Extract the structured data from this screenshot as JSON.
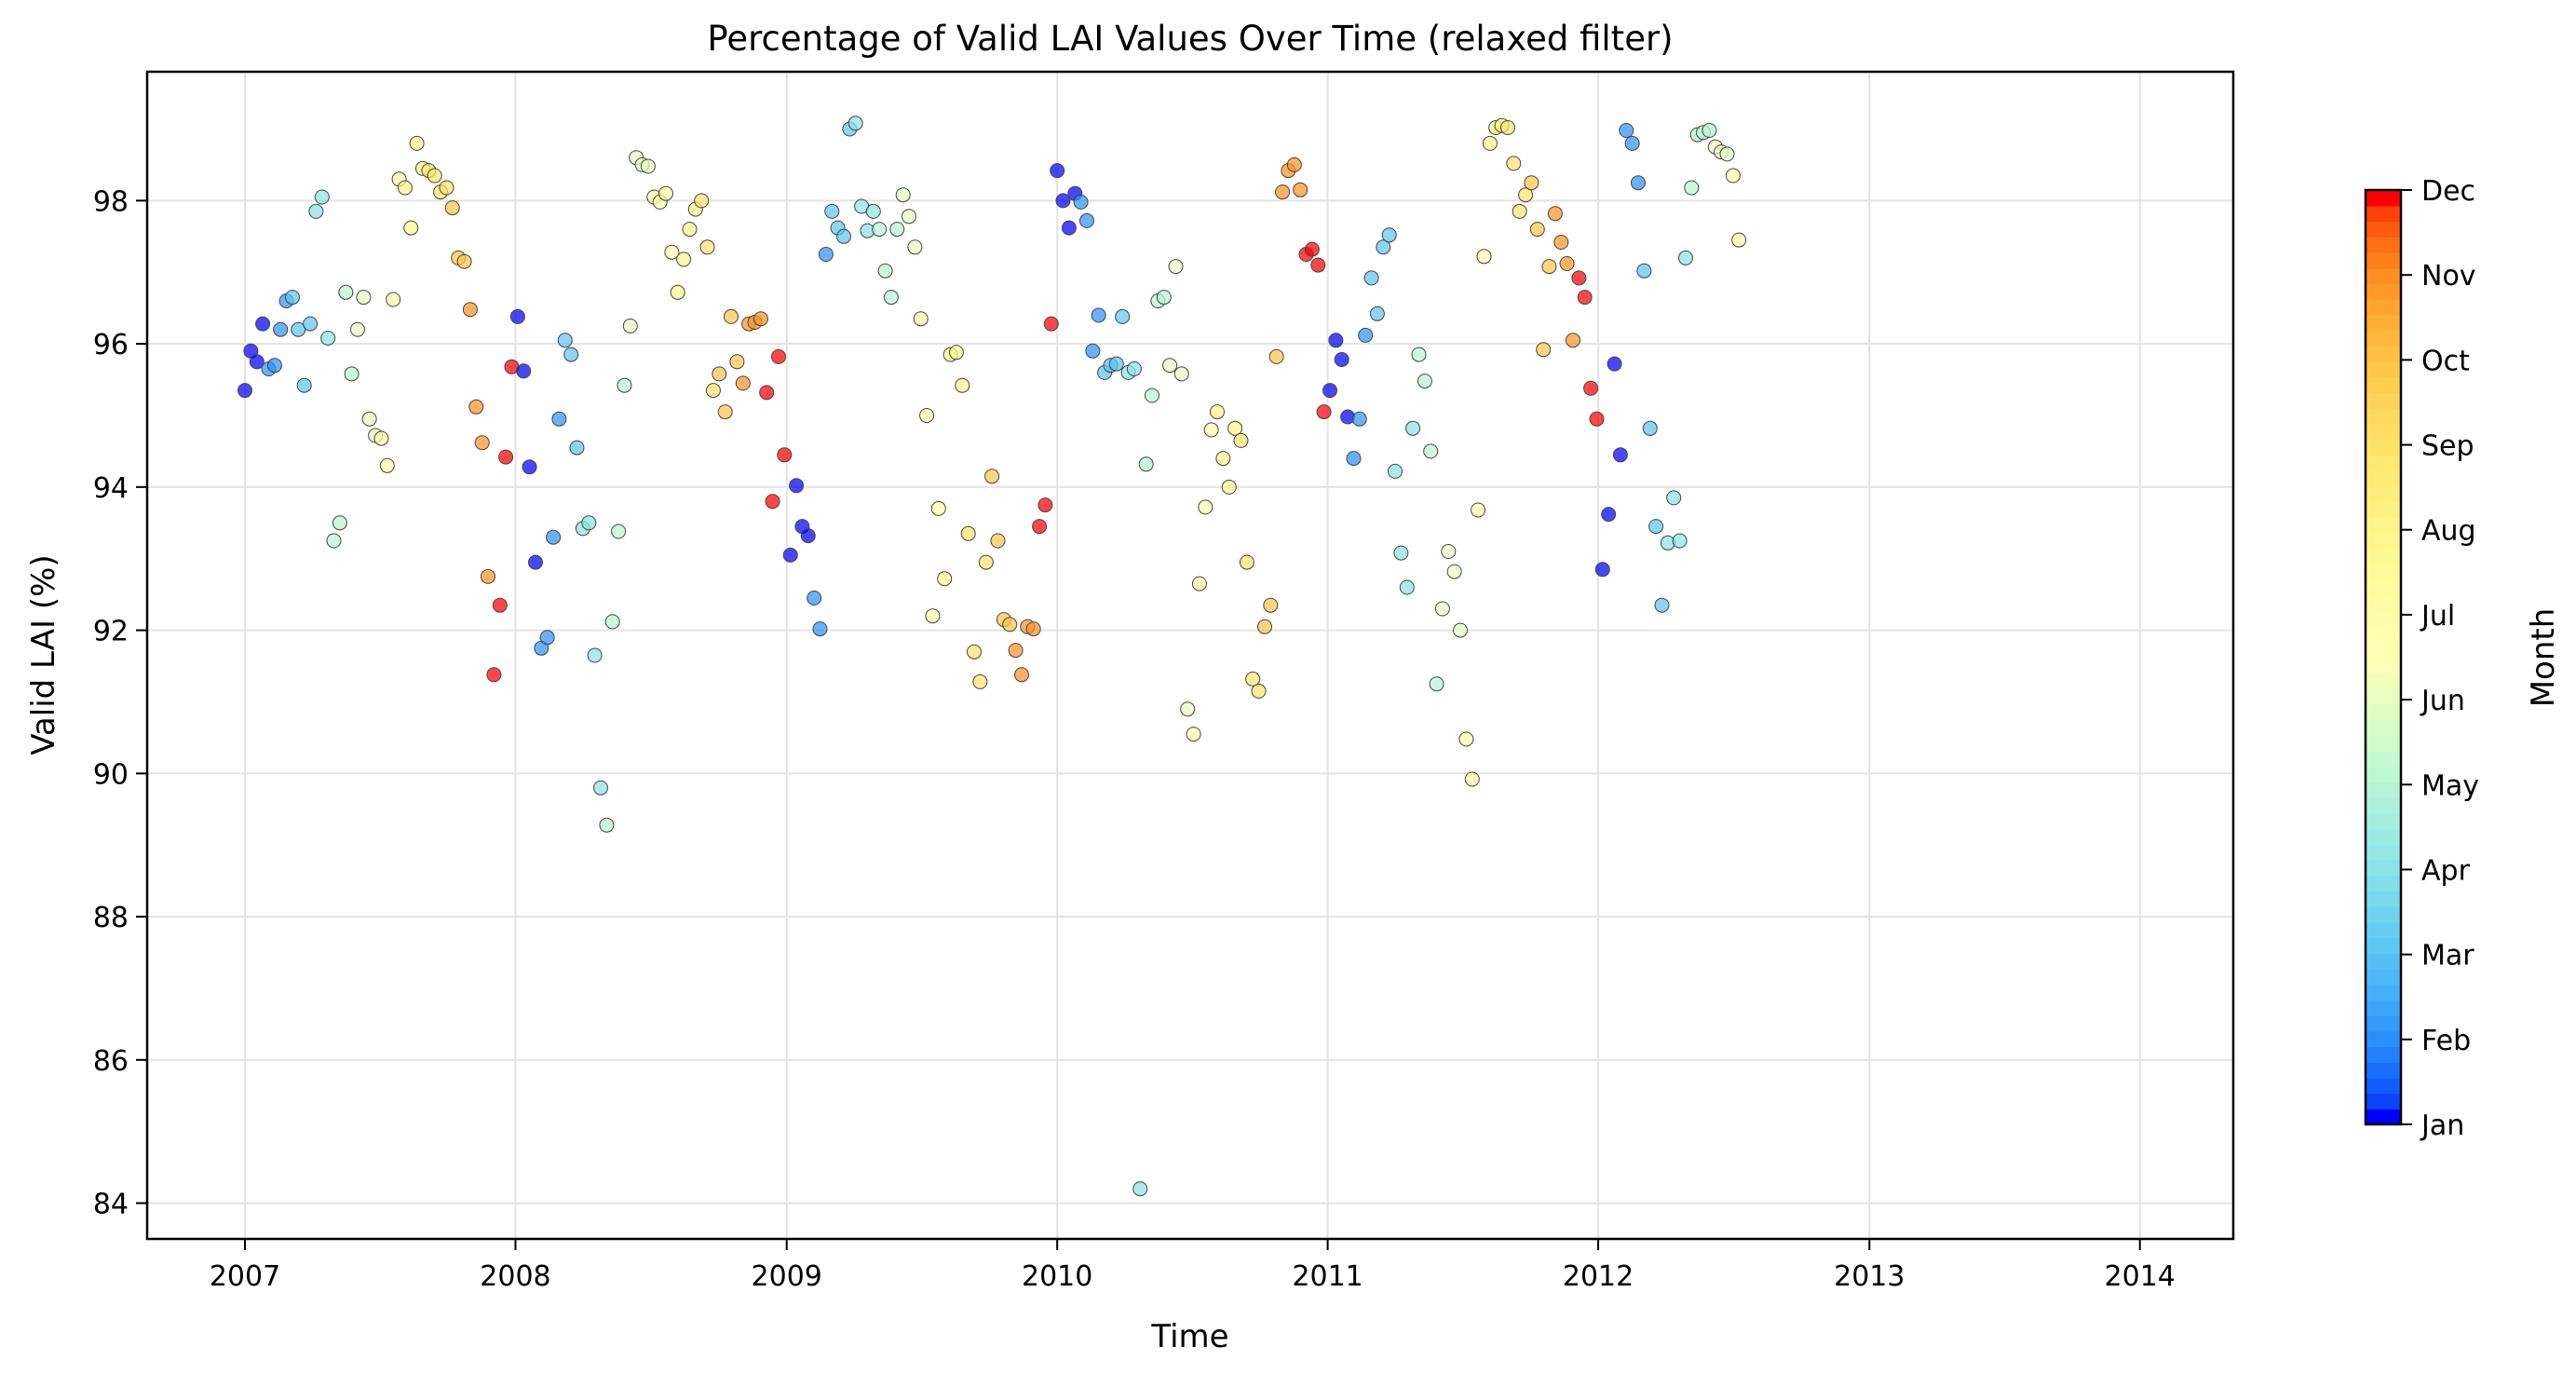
{
  "chart_data": {
    "type": "scatter",
    "title": "Percentage of Valid LAI Values Over Time (relaxed filter)",
    "xlabel": "Time",
    "ylabel": "Valid LAI (%)",
    "x_ticks": [
      "2007",
      "2008",
      "2009",
      "2010",
      "2011",
      "2012",
      "2013",
      "2014"
    ],
    "y_ticks": [
      "84",
      "86",
      "88",
      "90",
      "92",
      "94",
      "96",
      "98"
    ],
    "xlim": [
      "2006-08-22",
      "2014-05-07"
    ],
    "ylim": [
      83.5,
      99.8
    ],
    "grid": true,
    "color_encoding": "month",
    "colormap": "rainbow",
    "colorbar": {
      "label": "Month",
      "ticks": [
        "Jan",
        "Feb",
        "Mar",
        "Apr",
        "May",
        "Jun",
        "Jul",
        "Aug",
        "Sep",
        "Oct",
        "Nov",
        "Dec"
      ]
    },
    "points": [
      {
        "date": "2007-01-01",
        "value": 95.35
      },
      {
        "date": "2007-01-09",
        "value": 95.9
      },
      {
        "date": "2007-01-17",
        "value": 95.75
      },
      {
        "date": "2007-01-25",
        "value": 96.28
      },
      {
        "date": "2007-02-02",
        "value": 95.65
      },
      {
        "date": "2007-02-10",
        "value": 95.7
      },
      {
        "date": "2007-02-18",
        "value": 96.2
      },
      {
        "date": "2007-02-26",
        "value": 96.6
      },
      {
        "date": "2007-03-06",
        "value": 96.65
      },
      {
        "date": "2007-03-14",
        "value": 96.2
      },
      {
        "date": "2007-03-22",
        "value": 95.42
      },
      {
        "date": "2007-03-30",
        "value": 96.28
      },
      {
        "date": "2007-04-07",
        "value": 97.85
      },
      {
        "date": "2007-04-15",
        "value": 98.05
      },
      {
        "date": "2007-04-23",
        "value": 96.08
      },
      {
        "date": "2007-05-01",
        "value": 93.25
      },
      {
        "date": "2007-05-09",
        "value": 93.5
      },
      {
        "date": "2007-05-17",
        "value": 96.72
      },
      {
        "date": "2007-05-25",
        "value": 95.58
      },
      {
        "date": "2007-06-02",
        "value": 96.2
      },
      {
        "date": "2007-06-10",
        "value": 96.65
      },
      {
        "date": "2007-06-18",
        "value": 94.95
      },
      {
        "date": "2007-06-26",
        "value": 94.72
      },
      {
        "date": "2007-07-04",
        "value": 94.68
      },
      {
        "date": "2007-07-12",
        "value": 94.3
      },
      {
        "date": "2007-07-20",
        "value": 96.62
      },
      {
        "date": "2007-07-28",
        "value": 98.3
      },
      {
        "date": "2007-08-05",
        "value": 98.18
      },
      {
        "date": "2007-08-13",
        "value": 97.62
      },
      {
        "date": "2007-08-21",
        "value": 98.8
      },
      {
        "date": "2007-08-29",
        "value": 98.45
      },
      {
        "date": "2007-09-06",
        "value": 98.42
      },
      {
        "date": "2007-09-14",
        "value": 98.35
      },
      {
        "date": "2007-09-22",
        "value": 98.12
      },
      {
        "date": "2007-09-30",
        "value": 98.18
      },
      {
        "date": "2007-10-08",
        "value": 97.9
      },
      {
        "date": "2007-10-16",
        "value": 97.2
      },
      {
        "date": "2007-10-24",
        "value": 97.15
      },
      {
        "date": "2007-11-01",
        "value": 96.48
      },
      {
        "date": "2007-11-09",
        "value": 95.12
      },
      {
        "date": "2007-11-17",
        "value": 94.62
      },
      {
        "date": "2007-11-25",
        "value": 92.75
      },
      {
        "date": "2007-12-03",
        "value": 91.38
      },
      {
        "date": "2007-12-11",
        "value": 92.35
      },
      {
        "date": "2007-12-19",
        "value": 94.42
      },
      {
        "date": "2007-12-27",
        "value": 95.68
      },
      {
        "date": "2008-01-04",
        "value": 96.38
      },
      {
        "date": "2008-01-12",
        "value": 95.62
      },
      {
        "date": "2008-01-20",
        "value": 94.28
      },
      {
        "date": "2008-01-28",
        "value": 92.95
      },
      {
        "date": "2008-02-05",
        "value": 91.75
      },
      {
        "date": "2008-02-13",
        "value": 91.9
      },
      {
        "date": "2008-02-21",
        "value": 93.3
      },
      {
        "date": "2008-02-29",
        "value": 94.95
      },
      {
        "date": "2008-03-08",
        "value": 96.05
      },
      {
        "date": "2008-03-16",
        "value": 95.85
      },
      {
        "date": "2008-03-24",
        "value": 94.55
      },
      {
        "date": "2008-04-01",
        "value": 93.42
      },
      {
        "date": "2008-04-09",
        "value": 93.5
      },
      {
        "date": "2008-04-17",
        "value": 91.65
      },
      {
        "date": "2008-04-25",
        "value": 89.8
      },
      {
        "date": "2008-05-03",
        "value": 89.28
      },
      {
        "date": "2008-05-11",
        "value": 92.12
      },
      {
        "date": "2008-05-19",
        "value": 93.38
      },
      {
        "date": "2008-05-27",
        "value": 95.42
      },
      {
        "date": "2008-06-04",
        "value": 96.25
      },
      {
        "date": "2008-06-12",
        "value": 98.6
      },
      {
        "date": "2008-06-20",
        "value": 98.5
      },
      {
        "date": "2008-06-28",
        "value": 98.48
      },
      {
        "date": "2008-07-06",
        "value": 98.05
      },
      {
        "date": "2008-07-14",
        "value": 97.98
      },
      {
        "date": "2008-07-22",
        "value": 98.1
      },
      {
        "date": "2008-07-30",
        "value": 97.28
      },
      {
        "date": "2008-08-07",
        "value": 96.72
      },
      {
        "date": "2008-08-15",
        "value": 97.18
      },
      {
        "date": "2008-08-23",
        "value": 97.6
      },
      {
        "date": "2008-08-31",
        "value": 97.88
      },
      {
        "date": "2008-09-08",
        "value": 98.0
      },
      {
        "date": "2008-09-16",
        "value": 97.35
      },
      {
        "date": "2008-09-24",
        "value": 95.35
      },
      {
        "date": "2008-10-02",
        "value": 95.58
      },
      {
        "date": "2008-10-10",
        "value": 95.05
      },
      {
        "date": "2008-10-18",
        "value": 96.38
      },
      {
        "date": "2008-10-26",
        "value": 95.75
      },
      {
        "date": "2008-11-03",
        "value": 95.45
      },
      {
        "date": "2008-11-11",
        "value": 96.28
      },
      {
        "date": "2008-11-19",
        "value": 96.3
      },
      {
        "date": "2008-11-27",
        "value": 96.35
      },
      {
        "date": "2008-12-05",
        "value": 95.32
      },
      {
        "date": "2008-12-13",
        "value": 93.8
      },
      {
        "date": "2008-12-21",
        "value": 95.82
      },
      {
        "date": "2008-12-29",
        "value": 94.45
      },
      {
        "date": "2009-01-06",
        "value": 93.05
      },
      {
        "date": "2009-01-14",
        "value": 94.02
      },
      {
        "date": "2009-01-22",
        "value": 93.45
      },
      {
        "date": "2009-01-30",
        "value": 93.32
      },
      {
        "date": "2009-02-07",
        "value": 92.45
      },
      {
        "date": "2009-02-15",
        "value": 92.02
      },
      {
        "date": "2009-02-23",
        "value": 97.25
      },
      {
        "date": "2009-03-03",
        "value": 97.85
      },
      {
        "date": "2009-03-11",
        "value": 97.62
      },
      {
        "date": "2009-03-19",
        "value": 97.5
      },
      {
        "date": "2009-03-27",
        "value": 99.0
      },
      {
        "date": "2009-04-04",
        "value": 99.08
      },
      {
        "date": "2009-04-12",
        "value": 97.92
      },
      {
        "date": "2009-04-20",
        "value": 97.58
      },
      {
        "date": "2009-04-28",
        "value": 97.85
      },
      {
        "date": "2009-05-06",
        "value": 97.6
      },
      {
        "date": "2009-05-14",
        "value": 97.02
      },
      {
        "date": "2009-05-22",
        "value": 96.65
      },
      {
        "date": "2009-05-30",
        "value": 97.6
      },
      {
        "date": "2009-06-07",
        "value": 98.08
      },
      {
        "date": "2009-06-15",
        "value": 97.78
      },
      {
        "date": "2009-06-23",
        "value": 97.35
      },
      {
        "date": "2009-07-01",
        "value": 96.35
      },
      {
        "date": "2009-07-09",
        "value": 95.0
      },
      {
        "date": "2009-07-17",
        "value": 92.2
      },
      {
        "date": "2009-07-25",
        "value": 93.7
      },
      {
        "date": "2009-08-02",
        "value": 92.72
      },
      {
        "date": "2009-08-10",
        "value": 95.85
      },
      {
        "date": "2009-08-18",
        "value": 95.88
      },
      {
        "date": "2009-08-26",
        "value": 95.42
      },
      {
        "date": "2009-09-03",
        "value": 93.35
      },
      {
        "date": "2009-09-11",
        "value": 91.7
      },
      {
        "date": "2009-09-19",
        "value": 91.28
      },
      {
        "date": "2009-09-27",
        "value": 92.95
      },
      {
        "date": "2009-10-05",
        "value": 94.15
      },
      {
        "date": "2009-10-13",
        "value": 93.25
      },
      {
        "date": "2009-10-21",
        "value": 92.15
      },
      {
        "date": "2009-10-29",
        "value": 92.08
      },
      {
        "date": "2009-11-06",
        "value": 91.72
      },
      {
        "date": "2009-11-14",
        "value": 91.38
      },
      {
        "date": "2009-11-22",
        "value": 92.05
      },
      {
        "date": "2009-11-30",
        "value": 92.02
      },
      {
        "date": "2009-12-08",
        "value": 93.45
      },
      {
        "date": "2009-12-16",
        "value": 93.75
      },
      {
        "date": "2009-12-24",
        "value": 96.28
      },
      {
        "date": "2010-01-01",
        "value": 98.42
      },
      {
        "date": "2010-01-09",
        "value": 98.0
      },
      {
        "date": "2010-01-17",
        "value": 97.62
      },
      {
        "date": "2010-01-25",
        "value": 98.1
      },
      {
        "date": "2010-02-02",
        "value": 97.98
      },
      {
        "date": "2010-02-10",
        "value": 97.72
      },
      {
        "date": "2010-02-18",
        "value": 95.9
      },
      {
        "date": "2010-02-26",
        "value": 96.4
      },
      {
        "date": "2010-03-06",
        "value": 95.6
      },
      {
        "date": "2010-03-14",
        "value": 95.7
      },
      {
        "date": "2010-03-22",
        "value": 95.72
      },
      {
        "date": "2010-03-30",
        "value": 96.38
      },
      {
        "date": "2010-04-07",
        "value": 95.6
      },
      {
        "date": "2010-04-15",
        "value": 95.65
      },
      {
        "date": "2010-04-23",
        "value": 84.2
      },
      {
        "date": "2010-05-01",
        "value": 94.32
      },
      {
        "date": "2010-05-09",
        "value": 95.28
      },
      {
        "date": "2010-05-17",
        "value": 96.6
      },
      {
        "date": "2010-05-25",
        "value": 96.65
      },
      {
        "date": "2010-06-02",
        "value": 95.7
      },
      {
        "date": "2010-06-10",
        "value": 97.08
      },
      {
        "date": "2010-06-18",
        "value": 95.58
      },
      {
        "date": "2010-06-26",
        "value": 90.9
      },
      {
        "date": "2010-07-04",
        "value": 90.55
      },
      {
        "date": "2010-07-12",
        "value": 92.65
      },
      {
        "date": "2010-07-20",
        "value": 93.72
      },
      {
        "date": "2010-07-28",
        "value": 94.8
      },
      {
        "date": "2010-08-05",
        "value": 95.05
      },
      {
        "date": "2010-08-13",
        "value": 94.4
      },
      {
        "date": "2010-08-21",
        "value": 94.0
      },
      {
        "date": "2010-08-29",
        "value": 94.82
      },
      {
        "date": "2010-09-06",
        "value": 94.65
      },
      {
        "date": "2010-09-14",
        "value": 92.95
      },
      {
        "date": "2010-09-22",
        "value": 91.32
      },
      {
        "date": "2010-09-30",
        "value": 91.15
      },
      {
        "date": "2010-10-08",
        "value": 92.05
      },
      {
        "date": "2010-10-16",
        "value": 92.35
      },
      {
        "date": "2010-10-24",
        "value": 95.82
      },
      {
        "date": "2010-11-01",
        "value": 98.12
      },
      {
        "date": "2010-11-09",
        "value": 98.42
      },
      {
        "date": "2010-11-17",
        "value": 98.5
      },
      {
        "date": "2010-11-25",
        "value": 98.15
      },
      {
        "date": "2010-12-03",
        "value": 97.25
      },
      {
        "date": "2010-12-11",
        "value": 97.32
      },
      {
        "date": "2010-12-19",
        "value": 97.1
      },
      {
        "date": "2010-12-27",
        "value": 95.05
      },
      {
        "date": "2011-01-04",
        "value": 95.35
      },
      {
        "date": "2011-01-12",
        "value": 96.05
      },
      {
        "date": "2011-01-20",
        "value": 95.78
      },
      {
        "date": "2011-01-28",
        "value": 94.98
      },
      {
        "date": "2011-02-05",
        "value": 94.4
      },
      {
        "date": "2011-02-13",
        "value": 94.95
      },
      {
        "date": "2011-02-21",
        "value": 96.12
      },
      {
        "date": "2011-03-01",
        "value": 96.92
      },
      {
        "date": "2011-03-09",
        "value": 96.42
      },
      {
        "date": "2011-03-17",
        "value": 97.35
      },
      {
        "date": "2011-03-25",
        "value": 97.52
      },
      {
        "date": "2011-04-02",
        "value": 94.22
      },
      {
        "date": "2011-04-10",
        "value": 93.08
      },
      {
        "date": "2011-04-18",
        "value": 92.6
      },
      {
        "date": "2011-04-26",
        "value": 94.82
      },
      {
        "date": "2011-05-04",
        "value": 95.85
      },
      {
        "date": "2011-05-12",
        "value": 95.48
      },
      {
        "date": "2011-05-20",
        "value": 94.5
      },
      {
        "date": "2011-05-28",
        "value": 91.25
      },
      {
        "date": "2011-06-05",
        "value": 92.3
      },
      {
        "date": "2011-06-13",
        "value": 93.1
      },
      {
        "date": "2011-06-21",
        "value": 92.82
      },
      {
        "date": "2011-06-29",
        "value": 92.0
      },
      {
        "date": "2011-07-07",
        "value": 90.48
      },
      {
        "date": "2011-07-15",
        "value": 89.92
      },
      {
        "date": "2011-07-23",
        "value": 93.68
      },
      {
        "date": "2011-07-31",
        "value": 97.22
      },
      {
        "date": "2011-08-08",
        "value": 98.8
      },
      {
        "date": "2011-08-16",
        "value": 99.02
      },
      {
        "date": "2011-08-24",
        "value": 99.05
      },
      {
        "date": "2011-09-01",
        "value": 99.02
      },
      {
        "date": "2011-09-09",
        "value": 98.52
      },
      {
        "date": "2011-09-17",
        "value": 97.85
      },
      {
        "date": "2011-09-25",
        "value": 98.08
      },
      {
        "date": "2011-10-03",
        "value": 98.25
      },
      {
        "date": "2011-10-11",
        "value": 97.6
      },
      {
        "date": "2011-10-19",
        "value": 95.92
      },
      {
        "date": "2011-10-27",
        "value": 97.08
      },
      {
        "date": "2011-11-04",
        "value": 97.82
      },
      {
        "date": "2011-11-12",
        "value": 97.42
      },
      {
        "date": "2011-11-20",
        "value": 97.12
      },
      {
        "date": "2011-11-28",
        "value": 96.05
      },
      {
        "date": "2011-12-06",
        "value": 96.92
      },
      {
        "date": "2011-12-14",
        "value": 96.65
      },
      {
        "date": "2011-12-22",
        "value": 95.38
      },
      {
        "date": "2011-12-30",
        "value": 94.95
      },
      {
        "date": "2012-01-07",
        "value": 92.85
      },
      {
        "date": "2012-01-15",
        "value": 93.62
      },
      {
        "date": "2012-01-23",
        "value": 95.72
      },
      {
        "date": "2012-01-31",
        "value": 94.45
      },
      {
        "date": "2012-02-08",
        "value": 98.98
      },
      {
        "date": "2012-02-16",
        "value": 98.8
      },
      {
        "date": "2012-02-24",
        "value": 98.25
      },
      {
        "date": "2012-03-03",
        "value": 97.02
      },
      {
        "date": "2012-03-11",
        "value": 94.82
      },
      {
        "date": "2012-03-19",
        "value": 93.45
      },
      {
        "date": "2012-03-27",
        "value": 92.35
      },
      {
        "date": "2012-04-04",
        "value": 93.22
      },
      {
        "date": "2012-04-12",
        "value": 93.85
      },
      {
        "date": "2012-04-20",
        "value": 93.25
      },
      {
        "date": "2012-04-28",
        "value": 97.2
      },
      {
        "date": "2012-05-06",
        "value": 98.18
      },
      {
        "date": "2012-05-14",
        "value": 98.92
      },
      {
        "date": "2012-05-22",
        "value": 98.95
      },
      {
        "date": "2012-05-30",
        "value": 98.98
      },
      {
        "date": "2012-06-07",
        "value": 98.75
      },
      {
        "date": "2012-06-15",
        "value": 98.68
      },
      {
        "date": "2012-06-23",
        "value": 98.65
      },
      {
        "date": "2012-07-01",
        "value": 98.35
      },
      {
        "date": "2012-07-09",
        "value": 97.45
      }
    ]
  }
}
